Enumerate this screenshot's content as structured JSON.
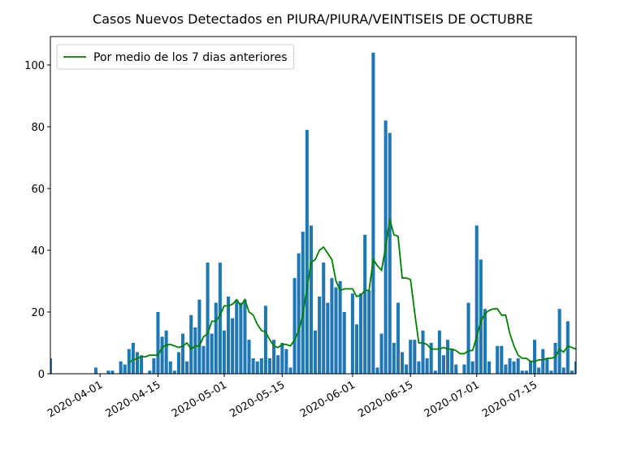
{
  "chart_data": {
    "type": "bar",
    "title": "Casos Nuevos Detectados en PIURA/PIURA/VEINTISEIS DE OCTUBRE",
    "x": [
      "2020-03-20",
      "2020-03-21",
      "2020-03-22",
      "2020-03-23",
      "2020-03-24",
      "2020-03-25",
      "2020-03-26",
      "2020-03-27",
      "2020-03-28",
      "2020-03-29",
      "2020-03-30",
      "2020-03-31",
      "2020-04-01",
      "2020-04-02",
      "2020-04-03",
      "2020-04-04",
      "2020-04-05",
      "2020-04-06",
      "2020-04-07",
      "2020-04-08",
      "2020-04-09",
      "2020-04-10",
      "2020-04-11",
      "2020-04-12",
      "2020-04-13",
      "2020-04-14",
      "2020-04-15",
      "2020-04-16",
      "2020-04-17",
      "2020-04-18",
      "2020-04-19",
      "2020-04-20",
      "2020-04-21",
      "2020-04-22",
      "2020-04-23",
      "2020-04-24",
      "2020-04-25",
      "2020-04-26",
      "2020-04-27",
      "2020-04-28",
      "2020-04-29",
      "2020-04-30",
      "2020-05-01",
      "2020-05-02",
      "2020-05-03",
      "2020-05-04",
      "2020-05-05",
      "2020-05-06",
      "2020-05-07",
      "2020-05-08",
      "2020-05-09",
      "2020-05-10",
      "2020-05-11",
      "2020-05-12",
      "2020-05-13",
      "2020-05-14",
      "2020-05-15",
      "2020-05-16",
      "2020-05-17",
      "2020-05-18",
      "2020-05-19",
      "2020-05-20",
      "2020-05-21",
      "2020-05-22",
      "2020-05-23",
      "2020-05-24",
      "2020-05-25",
      "2020-05-26",
      "2020-05-27",
      "2020-05-28",
      "2020-05-29",
      "2020-05-30",
      "2020-05-31",
      "2020-06-01",
      "2020-06-02",
      "2020-06-03",
      "2020-06-04",
      "2020-06-05",
      "2020-06-06",
      "2020-06-07",
      "2020-06-08",
      "2020-06-09",
      "2020-06-10",
      "2020-06-11",
      "2020-06-12",
      "2020-06-13",
      "2020-06-14",
      "2020-06-15",
      "2020-06-16",
      "2020-06-17",
      "2020-06-18",
      "2020-06-19",
      "2020-06-20",
      "2020-06-21",
      "2020-06-22",
      "2020-06-23",
      "2020-06-24",
      "2020-06-25",
      "2020-06-26",
      "2020-06-27",
      "2020-06-28",
      "2020-06-29",
      "2020-06-30",
      "2020-07-01",
      "2020-07-02",
      "2020-07-03",
      "2020-07-04",
      "2020-07-05",
      "2020-07-06",
      "2020-07-07",
      "2020-07-08",
      "2020-07-09",
      "2020-07-10",
      "2020-07-11",
      "2020-07-12",
      "2020-07-13",
      "2020-07-14",
      "2020-07-15",
      "2020-07-16",
      "2020-07-17",
      "2020-07-18",
      "2020-07-19",
      "2020-07-20",
      "2020-07-21",
      "2020-07-22",
      "2020-07-23",
      "2020-07-24",
      "2020-07-25"
    ],
    "series": [
      {
        "type": "bar",
        "color": "#1f77b4",
        "values": [
          5,
          0,
          0,
          0,
          0,
          0,
          0,
          0,
          0,
          0,
          0,
          2,
          0,
          0,
          1,
          1,
          0,
          4,
          3,
          8,
          10,
          7,
          6,
          0,
          1,
          5,
          20,
          12,
          14,
          4,
          1,
          7,
          13,
          4,
          19,
          15,
          24,
          9,
          36,
          13,
          23,
          36,
          14,
          25,
          18,
          24,
          23,
          24,
          11,
          5,
          4,
          5,
          22,
          5,
          11,
          6,
          10,
          8,
          2,
          31,
          39,
          46,
          79,
          48,
          14,
          25,
          36,
          23,
          31,
          28,
          30,
          20,
          0,
          26,
          16,
          26,
          45,
          27,
          104,
          2,
          13,
          82,
          78,
          10,
          23,
          7,
          3,
          11,
          11,
          4,
          14,
          5,
          10,
          1,
          14,
          6,
          11,
          8,
          3,
          0,
          3,
          23,
          4,
          48,
          37,
          21,
          4,
          0,
          9,
          9,
          3,
          5,
          4,
          5,
          1,
          1,
          4,
          11,
          2,
          8,
          5,
          1,
          10,
          21,
          2,
          17,
          1,
          4
        ]
      },
      {
        "type": "line",
        "name": "Por medio de los 7 dias anteriores",
        "color": "#008000",
        "values": [
          null,
          null,
          null,
          null,
          null,
          null,
          null,
          null,
          null,
          null,
          null,
          null,
          null,
          null,
          null,
          null,
          null,
          null,
          null,
          3.7,
          4.5,
          5,
          5.5,
          5.5,
          6,
          6,
          6,
          8.5,
          9.3,
          9.5,
          9,
          8.5,
          9,
          10,
          8,
          9,
          9,
          12,
          13,
          17,
          17,
          19,
          22,
          22,
          22.5,
          24,
          22,
          24,
          20,
          19,
          16,
          14,
          13.5,
          11,
          9,
          8.5,
          9.5,
          9.5,
          9,
          11,
          14,
          19,
          28,
          36,
          37,
          40,
          41,
          39,
          37,
          30,
          27,
          27.5,
          27.5,
          27.5,
          25,
          25.5,
          27,
          27,
          37,
          35,
          33.5,
          41,
          50,
          45,
          44.5,
          31,
          31,
          30.5,
          20,
          10,
          10,
          9.5,
          8,
          8,
          8,
          8.5,
          8,
          8,
          7.5,
          6.5,
          6.5,
          7.5,
          7.5,
          12,
          17,
          19.5,
          20.5,
          21,
          21,
          19,
          19,
          13,
          9,
          6,
          5,
          5,
          4,
          4,
          4.5,
          4.5,
          5,
          5,
          5.5,
          8,
          7,
          9,
          8.5,
          8
        ]
      }
    ],
    "xlim": [
      "2020-03-20",
      "2020-07-25"
    ],
    "xticks": [
      "2020-04-01",
      "2020-04-15",
      "2020-05-01",
      "2020-05-15",
      "2020-06-01",
      "2020-06-15",
      "2020-07-01",
      "2020-07-15"
    ],
    "ylim": [
      0,
      109.2
    ],
    "yticks": [
      0,
      20,
      40,
      60,
      80,
      100
    ],
    "legend": "upper left"
  }
}
